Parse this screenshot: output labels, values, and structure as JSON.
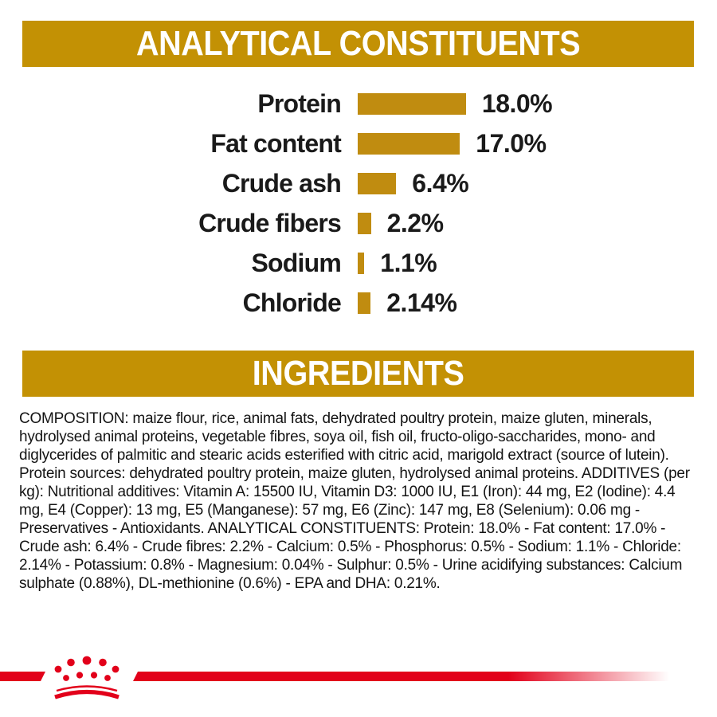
{
  "colors": {
    "banner_gold": "#C39104",
    "bar_gold": "#C08C10",
    "brand_red": "#E2001A",
    "text_dark": "#1A1A1A"
  },
  "sections": {
    "analytical_title": "ANALYTICAL CONSTITUENTS",
    "ingredients_title": "INGREDIENTS",
    "composition_text": "COMPOSITION: maize flour, rice, animal fats, dehydrated poultry protein, maize gluten, minerals, hydrolysed animal proteins, vegetable fibres, soya oil, fish oil, fructo-oligo-saccharides, mono- and diglycerides of palmitic and stearic acids esterified with citric acid, marigold extract (source of lutein). Protein sources: dehydrated poultry protein, maize gluten, hydrolysed animal proteins. ADDITIVES (per kg): Nutritional additives: Vitamin A: 15500 IU, Vitamin D3: 1000 IU, E1 (Iron): 44 mg, E2 (Iodine): 4.4 mg, E4 (Copper): 13 mg, E5 (Manganese): 57 mg, E6 (Zinc): 147 mg, E8 (Selenium): 0.06 mg - Preservatives - Antioxidants. ANALYTICAL CONSTITUENTS: Protein: 18.0% - Fat content: 17.0% - Crude ash: 6.4% - Crude fibres: 2.2% - Calcium: 0.5% - Phosphorus: 0.5% - Sodium: 1.1% - Chloride: 2.14% - Potassium: 0.8% - Magnesium: 0.04% - Sulphur: 0.5% - Urine acidifying substances: Calcium sulphate (0.88%), DL-methionine (0.6%) - EPA and DHA: 0.21%."
  },
  "chart_data": {
    "type": "bar",
    "orientation": "horizontal",
    "title": "ANALYTICAL CONSTITUENTS",
    "categories": [
      "Protein",
      "Fat content",
      "Crude ash",
      "Crude fibers",
      "Sodium",
      "Chloride"
    ],
    "values": [
      18.0,
      17.0,
      6.4,
      2.2,
      1.1,
      2.14
    ],
    "value_labels": [
      "18.0%",
      "17.0%",
      "6.4%",
      "2.2%",
      "1.1%",
      "2.14%"
    ],
    "bar_color": "#C08C10",
    "xlim": [
      0,
      20
    ],
    "grid": false,
    "legend": false
  },
  "footer": {
    "logo": "royal-canin-crown-logo"
  }
}
